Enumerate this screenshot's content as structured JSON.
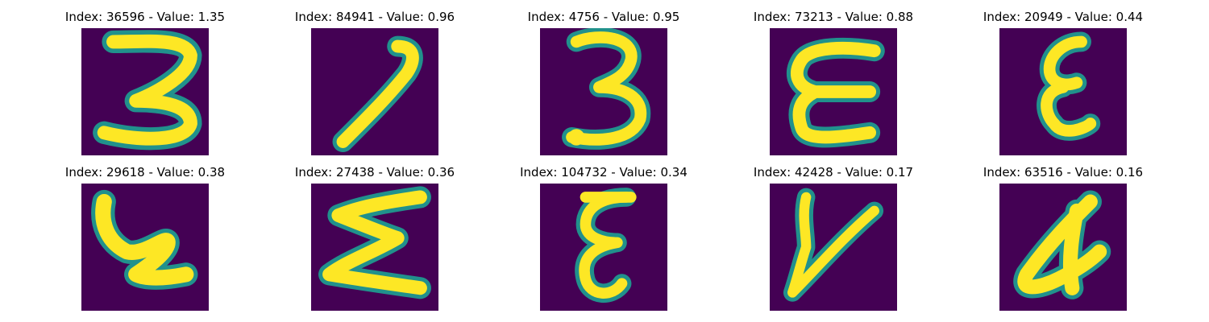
{
  "colors": {
    "background": "#440154",
    "stroke_edge": "#21918c",
    "stroke_mid": "#5ec962",
    "stroke_core": "#fde725"
  },
  "panels": [
    {
      "title": "Index: 36596 - Value: 1.35",
      "glyph": "3"
    },
    {
      "title": "Index: 84941 - Value: 0.96",
      "glyph": "7"
    },
    {
      "title": "Index: 4756 - Value: 0.95",
      "glyph": "3"
    },
    {
      "title": "Index: 73213 - Value: 0.88",
      "glyph": "E"
    },
    {
      "title": "Index: 20949 - Value: 0.44",
      "glyph": "ε"
    },
    {
      "title": "Index: 29618 - Value: 0.38",
      "glyph": "ꞓ"
    },
    {
      "title": "Index: 27438 - Value: 0.36",
      "glyph": "Σ"
    },
    {
      "title": "Index: 104732 - Value: 0.34",
      "glyph": "ξ"
    },
    {
      "title": "Index: 42428 - Value: 0.17",
      "glyph": "V"
    },
    {
      "title": "Index: 63516 - Value: 0.16",
      "glyph": "4"
    }
  ]
}
